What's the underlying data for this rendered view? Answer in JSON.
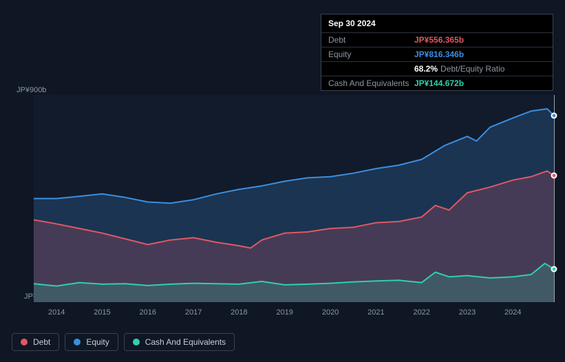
{
  "chart": {
    "type": "area-line",
    "background_color": "#0f1724",
    "plot_background_color": "#121b2b",
    "grid_color": "#2a3240",
    "ylim": [
      0,
      900
    ],
    "y_unit": "JP¥b",
    "y_top_label": "JP¥900b",
    "y_bot_label": "JP¥0",
    "x_labels": [
      "2014",
      "2015",
      "2016",
      "2017",
      "2018",
      "2019",
      "2020",
      "2021",
      "2022",
      "2023",
      "2024"
    ],
    "x_domain": [
      2013.5,
      2024.9
    ],
    "series": {
      "equity": {
        "color": "#3b8fe0",
        "fill": "rgba(59,143,224,0.22)",
        "line_width": 2,
        "points": [
          [
            2013.5,
            450
          ],
          [
            2014,
            450
          ],
          [
            2014.5,
            460
          ],
          [
            2015,
            470
          ],
          [
            2015.5,
            455
          ],
          [
            2016,
            435
          ],
          [
            2016.5,
            430
          ],
          [
            2017,
            445
          ],
          [
            2017.5,
            470
          ],
          [
            2018,
            490
          ],
          [
            2018.5,
            505
          ],
          [
            2019,
            525
          ],
          [
            2019.5,
            540
          ],
          [
            2020,
            545
          ],
          [
            2020.5,
            560
          ],
          [
            2021,
            580
          ],
          [
            2021.5,
            595
          ],
          [
            2022,
            620
          ],
          [
            2022.5,
            680
          ],
          [
            2023,
            720
          ],
          [
            2023.2,
            700
          ],
          [
            2023.5,
            760
          ],
          [
            2024,
            800
          ],
          [
            2024.4,
            830
          ],
          [
            2024.75,
            840
          ],
          [
            2024.9,
            810
          ]
        ]
      },
      "debt": {
        "color": "#e15864",
        "fill": "rgba(225,88,100,0.22)",
        "line_width": 2,
        "points": [
          [
            2013.5,
            358
          ],
          [
            2014,
            340
          ],
          [
            2014.5,
            320
          ],
          [
            2015,
            300
          ],
          [
            2015.5,
            275
          ],
          [
            2016,
            250
          ],
          [
            2016.5,
            270
          ],
          [
            2017,
            280
          ],
          [
            2017.5,
            260
          ],
          [
            2018,
            245
          ],
          [
            2018.25,
            235
          ],
          [
            2018.5,
            270
          ],
          [
            2019,
            300
          ],
          [
            2019.5,
            305
          ],
          [
            2020,
            320
          ],
          [
            2020.5,
            325
          ],
          [
            2021,
            345
          ],
          [
            2021.5,
            350
          ],
          [
            2022,
            370
          ],
          [
            2022.3,
            420
          ],
          [
            2022.6,
            400
          ],
          [
            2023,
            475
          ],
          [
            2023.5,
            500
          ],
          [
            2024,
            530
          ],
          [
            2024.4,
            545
          ],
          [
            2024.75,
            570
          ],
          [
            2024.9,
            550
          ]
        ]
      },
      "cash": {
        "color": "#2fd0b0",
        "fill": "rgba(47,208,176,0.20)",
        "line_width": 2,
        "points": [
          [
            2013.5,
            80
          ],
          [
            2014,
            70
          ],
          [
            2014.5,
            85
          ],
          [
            2015,
            78
          ],
          [
            2015.5,
            80
          ],
          [
            2016,
            72
          ],
          [
            2016.5,
            78
          ],
          [
            2017,
            82
          ],
          [
            2017.5,
            80
          ],
          [
            2018,
            78
          ],
          [
            2018.5,
            90
          ],
          [
            2019,
            75
          ],
          [
            2019.5,
            78
          ],
          [
            2020,
            82
          ],
          [
            2020.5,
            88
          ],
          [
            2021,
            92
          ],
          [
            2021.5,
            95
          ],
          [
            2022,
            85
          ],
          [
            2022.3,
            130
          ],
          [
            2022.6,
            110
          ],
          [
            2023,
            115
          ],
          [
            2023.5,
            105
          ],
          [
            2024,
            110
          ],
          [
            2024.4,
            120
          ],
          [
            2024.7,
            168
          ],
          [
            2024.9,
            144
          ]
        ]
      }
    },
    "highlight_x": 2024.9,
    "markers": [
      {
        "series": "equity",
        "x": 2024.9,
        "color": "#3b8fe0"
      },
      {
        "series": "debt",
        "x": 2024.9,
        "color": "#e15864"
      },
      {
        "series": "cash",
        "x": 2024.9,
        "color": "#2fd0b0"
      }
    ]
  },
  "tooltip": {
    "date": "Sep 30 2024",
    "rows": {
      "debt": {
        "label": "Debt",
        "value": "JP¥556.365b"
      },
      "equity": {
        "label": "Equity",
        "value": "JP¥816.346b"
      },
      "ratio": {
        "pct": "68.2%",
        "label": "Debt/Equity Ratio"
      },
      "cash": {
        "label": "Cash And Equivalents",
        "value": "JP¥144.672b"
      }
    }
  },
  "legend": {
    "items": [
      {
        "key": "debt",
        "label": "Debt",
        "swatch": "#e15864"
      },
      {
        "key": "equity",
        "label": "Equity",
        "swatch": "#3b8fe0"
      },
      {
        "key": "cash",
        "label": "Cash And Equivalents",
        "swatch": "#2fd0b0"
      }
    ]
  }
}
